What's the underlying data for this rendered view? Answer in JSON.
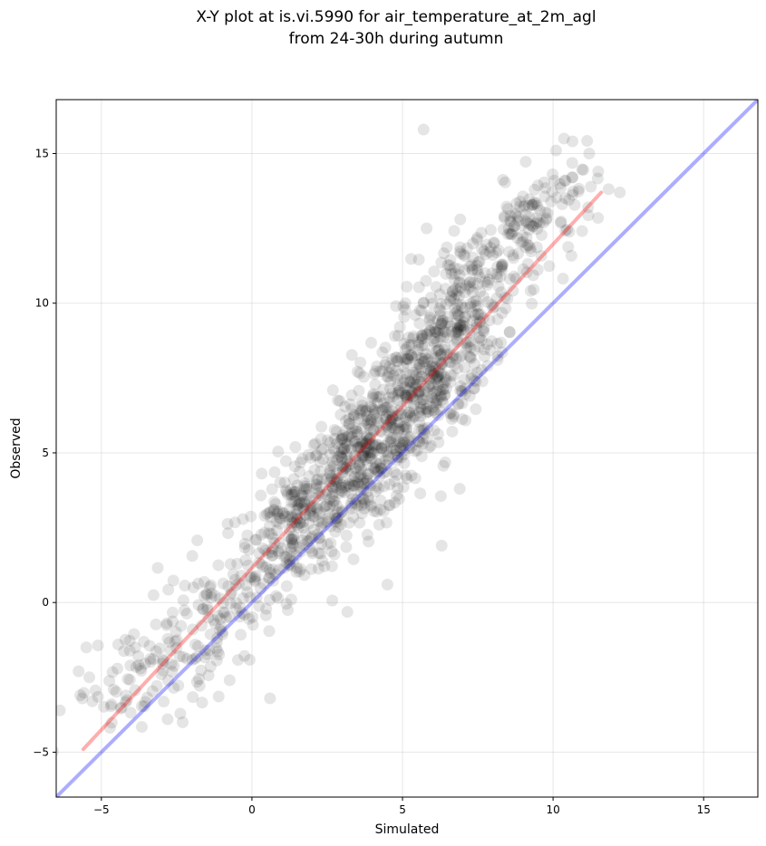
{
  "chart_data": {
    "type": "scatter",
    "title_lines": [
      "X-Y plot at is.vi.5990 for air_temperature_at_2m_agl",
      "from 24-30h during autumn"
    ],
    "xlabel": "Simulated",
    "ylabel": "Observed",
    "xlim": [
      -6.5,
      16.8
    ],
    "ylim": [
      -6.5,
      16.8
    ],
    "xticks": [
      -5,
      0,
      5,
      10,
      15
    ],
    "yticks": [
      -5,
      0,
      5,
      10,
      15
    ],
    "xtick_labels": [
      "−5",
      "0",
      "5",
      "10",
      "15"
    ],
    "ytick_labels": [
      "−5",
      "0",
      "5",
      "10",
      "15"
    ],
    "grid": true,
    "point_count": 1500,
    "point_color": "#000000",
    "point_alpha": 0.1,
    "fit_line": {
      "color": "#ff0000",
      "x": [
        -5.6,
        11.6
      ],
      "y": [
        -4.9,
        13.7
      ]
    },
    "identity_line": {
      "color": "#0000ff",
      "x": [
        -6.5,
        16.8
      ],
      "y": [
        -6.5,
        16.8
      ]
    },
    "clusters": [
      {
        "x": 1.5,
        "y": 2.8,
        "sx": 1.0,
        "sy": 1.3,
        "n": 240
      },
      {
        "x": 3.8,
        "y": 4.8,
        "sx": 1.1,
        "sy": 1.4,
        "n": 380
      },
      {
        "x": 5.8,
        "y": 7.6,
        "sx": 1.1,
        "sy": 1.6,
        "n": 360
      },
      {
        "x": 7.2,
        "y": 10.0,
        "sx": 1.2,
        "sy": 1.5,
        "n": 200
      },
      {
        "x": 9.5,
        "y": 12.9,
        "sx": 1.0,
        "sy": 0.9,
        "n": 120
      },
      {
        "x": -1.2,
        "y": -0.6,
        "sx": 1.3,
        "sy": 1.4,
        "n": 130
      },
      {
        "x": -3.8,
        "y": -2.3,
        "sx": 1.1,
        "sy": 1.0,
        "n": 70
      }
    ],
    "outliers": [
      [
        5.7,
        15.8
      ],
      [
        -5.5,
        -1.5
      ],
      [
        -5.7,
        -3.1
      ],
      [
        -5.3,
        -3.3
      ],
      [
        -5.4,
        -2.5
      ],
      [
        -2.3,
        -4.0
      ],
      [
        -2.8,
        -3.9
      ],
      [
        6.3,
        1.9
      ],
      [
        6.9,
        3.8
      ],
      [
        4.5,
        0.6
      ],
      [
        0.6,
        -3.2
      ],
      [
        11.5,
        14.4
      ],
      [
        11.2,
        15.0
      ],
      [
        10.1,
        15.1
      ],
      [
        5.8,
        12.5
      ]
    ]
  }
}
